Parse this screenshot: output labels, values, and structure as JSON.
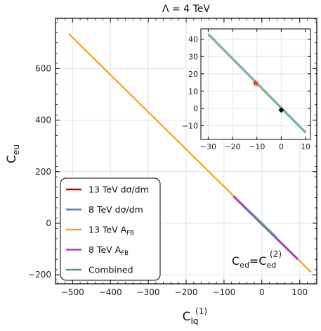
{
  "chart_data": {
    "type": "line",
    "title": "Λ = 4 TeV",
    "xlabel_main": "C",
    "xlabel_sub": "lq",
    "xlabel_sup": "(1)",
    "ylabel_main": "C",
    "ylabel_sub": "eu",
    "xlim": [
      -545,
      145
    ],
    "ylim": [
      -235,
      795
    ],
    "xticks": [
      -500,
      -400,
      -300,
      -200,
      -100,
      0,
      100
    ],
    "yticks": [
      -200,
      0,
      200,
      400,
      600
    ],
    "xtick_labels": [
      "−500",
      "−400",
      "−300",
      "−200",
      "−100",
      "0",
      "100"
    ],
    "ytick_labels": [
      "−200",
      "0",
      "200",
      "400",
      "600"
    ],
    "grid": true,
    "series": [
      {
        "name": "13 TeV dσ/dm",
        "color": "#c00000",
        "x": [
          -30,
          30
        ],
        "y": [
          43,
          -43
        ]
      },
      {
        "name": "8 TeV dσ/dm",
        "color": "#5b7fd6",
        "x": [
          -40,
          40
        ],
        "y": [
          57,
          -57
        ]
      },
      {
        "name": "13 TeV A_FB",
        "color": "#f5a31a",
        "x": [
          -510,
          130
        ],
        "y": [
          735,
          -190
        ]
      },
      {
        "name": "8 TeV A_FB",
        "color": "#b041b8",
        "x": [
          -75,
          95
        ],
        "y": [
          105,
          -140
        ]
      },
      {
        "name": "Combined",
        "color": "#4f9a78",
        "x": [
          -25,
          25
        ],
        "y": [
          36,
          -36
        ]
      }
    ],
    "legend": {
      "placement": "bottom-left",
      "entries": [
        {
          "label": "13 TeV dσ/dm",
          "color": "#c00000"
        },
        {
          "label": "8 TeV dσ/dm",
          "color": "#5b7fd6"
        },
        {
          "label": "13 TeV A",
          "sub": "FB",
          "color": "#f5a31a"
        },
        {
          "label": "8 TeV A",
          "sub": "FB",
          "color": "#b041b8"
        },
        {
          "label": "Combined",
          "color": "#4f9a78"
        }
      ]
    },
    "annotation": {
      "main": "C",
      "sub": "ed",
      "mid": "=C",
      "sup": "(2)",
      "sub2": "ed"
    },
    "inset": {
      "xlim": [
        -33,
        12
      ],
      "ylim": [
        -18,
        46
      ],
      "xticks": [
        -30,
        -20,
        -10,
        0,
        10
      ],
      "yticks": [
        -10,
        0,
        10,
        20,
        30,
        40
      ],
      "xtick_labels": [
        "−30",
        "−20",
        "−10",
        "0",
        "10"
      ],
      "ytick_labels": [
        "−10",
        "0",
        "10",
        "20",
        "30",
        "40"
      ],
      "band": {
        "color": "#6aa88a",
        "x": [
          -30,
          10
        ],
        "y": [
          43,
          -14
        ]
      },
      "markers": [
        {
          "name": "star",
          "shape": "star",
          "color": "#ff3030",
          "x": -10.5,
          "y": 14.5
        },
        {
          "name": "diamond",
          "shape": "diamond",
          "color": "#000000",
          "x": 0,
          "y": -1
        }
      ]
    }
  }
}
